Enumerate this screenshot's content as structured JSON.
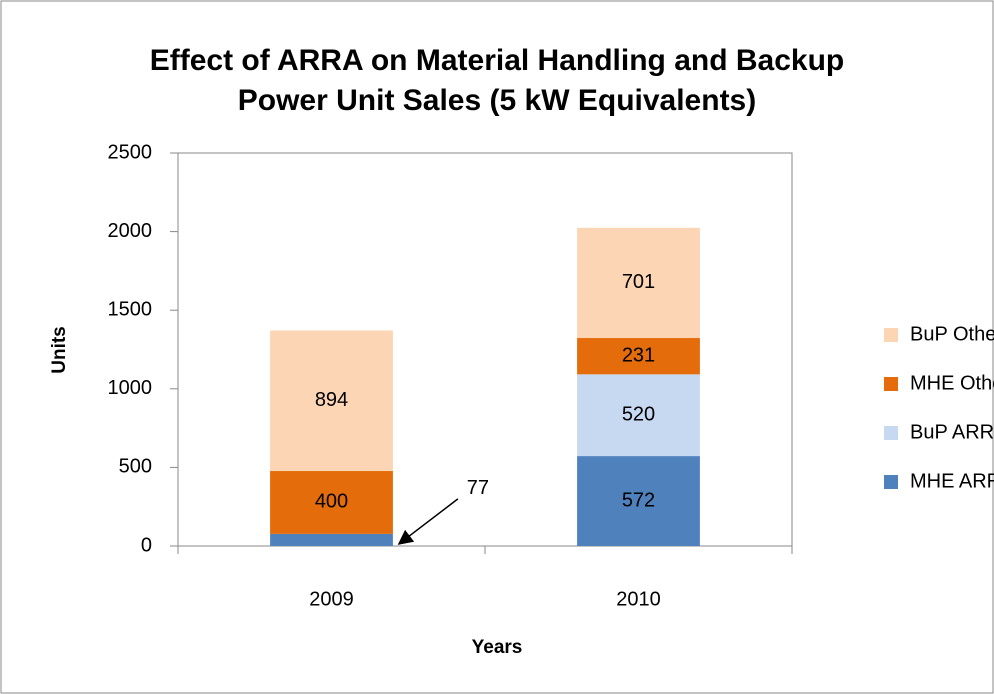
{
  "chart_data": {
    "type": "stacked_bar",
    "title": "Effect of ARRA on Material Handling and Backup Power Unit Sales (5 kW Equivalents)",
    "title_lines": [
      "Effect of ARRA on Material Handling and Backup",
      "Power Unit Sales (5 kW Equivalents)"
    ],
    "x_label": "Years",
    "y_label": "Units",
    "categories": [
      "2009",
      "2010"
    ],
    "series": [
      {
        "name": "MHE ARRA",
        "color": "#4f81bd",
        "values": [
          77,
          572
        ]
      },
      {
        "name": "BuP ARRA",
        "color": "#c6d9f1",
        "values": [
          null,
          520
        ]
      },
      {
        "name": "MHE Other",
        "color": "#e46c0a",
        "values": [
          400,
          231
        ]
      },
      {
        "name": "BuP Other",
        "color": "#fcd5b5",
        "values": [
          894,
          701
        ]
      }
    ],
    "ylim": [
      0,
      2500
    ],
    "yticks": [
      0,
      500,
      1000,
      1500,
      2000,
      2500
    ],
    "grid": false,
    "legend": "right"
  }
}
